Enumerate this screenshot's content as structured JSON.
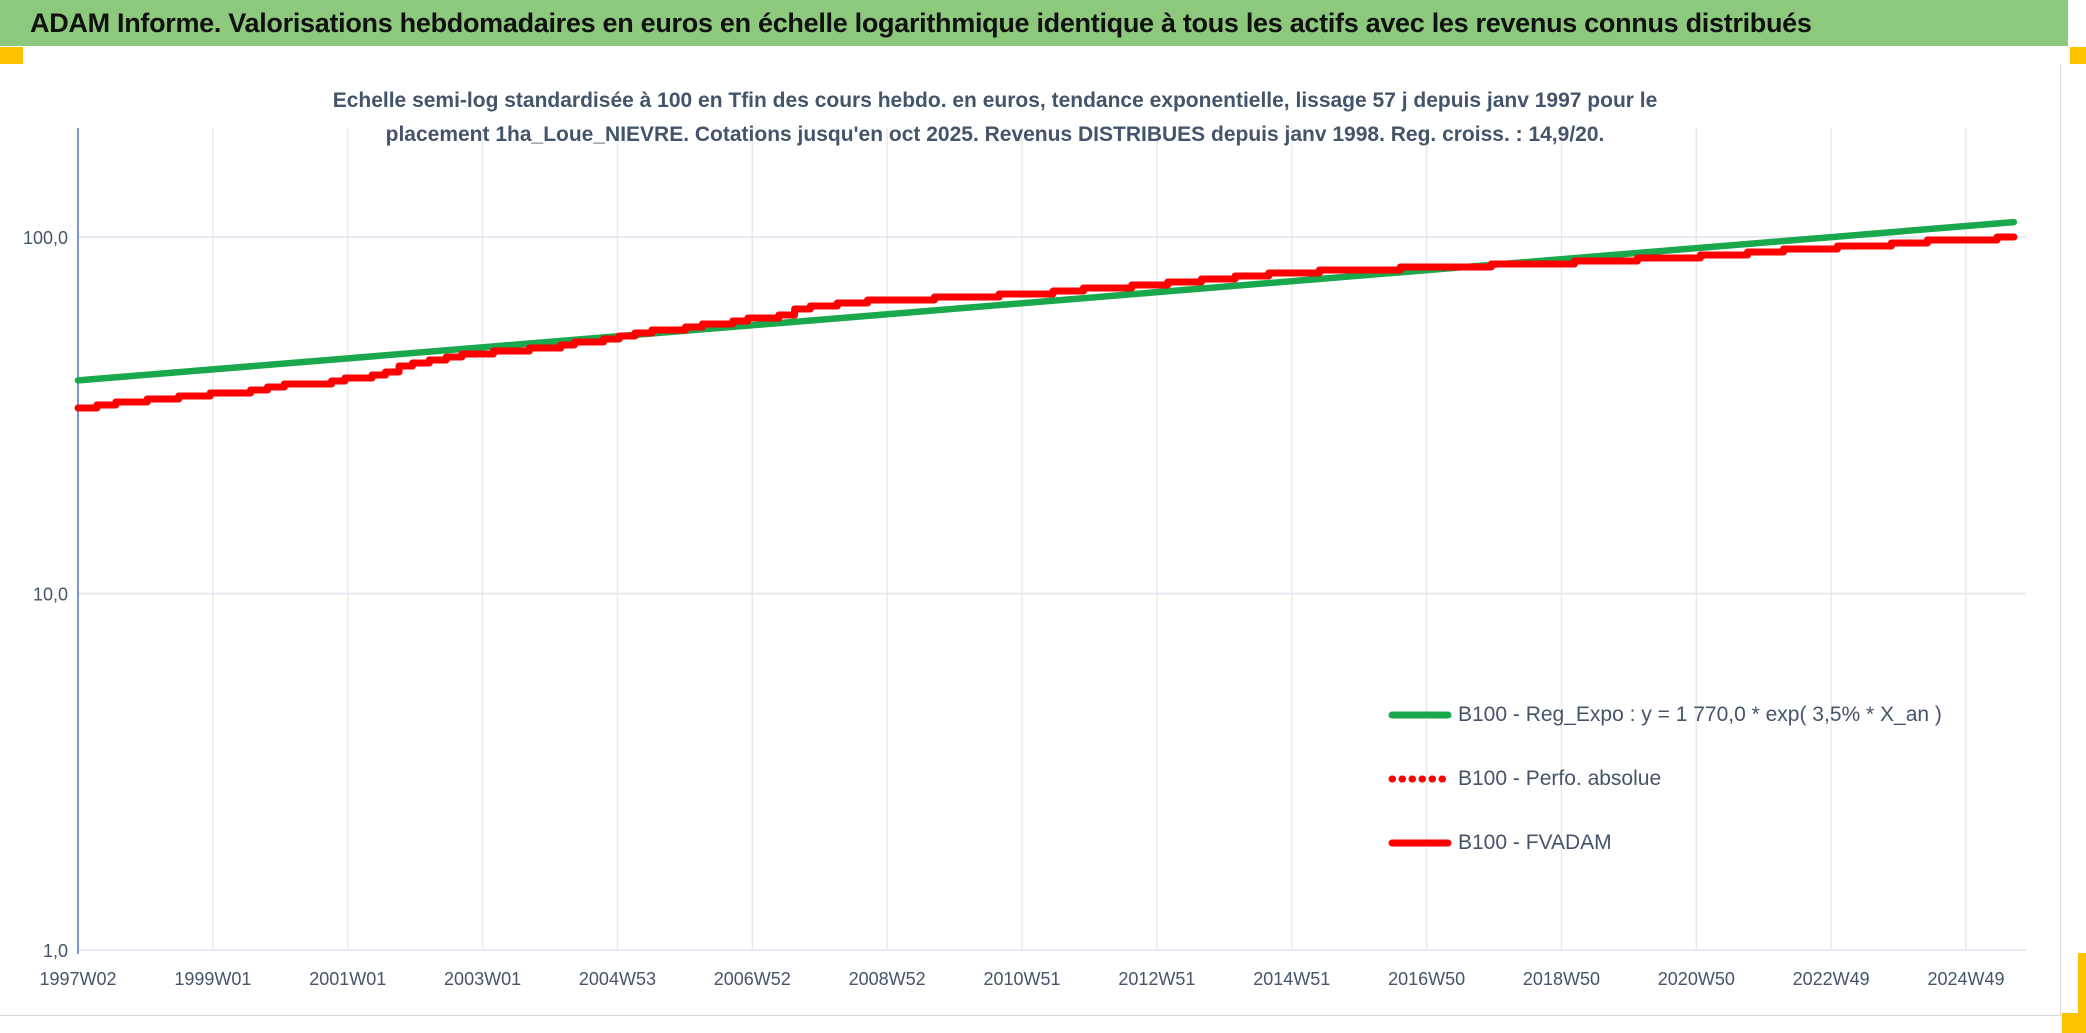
{
  "header": {
    "title": "ADAM Informe. Valorisations hebdomadaires en euros en échelle logarithmique identique à tous les actifs avec les revenus connus distribués"
  },
  "chart": {
    "subtitle_lines": [
      "Echelle semi-log standardisée à 100 en Tfin des cours hebdo. en euros, tendance exponentielle, lissage 57 j depuis janv 1997 pour le",
      "placement 1ha_Loue_NIEVRE. Cotations jusqu'en oct 2025. Revenus DISTRIBUES depuis janv 1998. Reg. croiss. : 14,9/20."
    ]
  },
  "colors": {
    "header_green": "#8DC97D",
    "accent_amber": "#FFC000",
    "text_blue_gray": "#44546A",
    "axis_blue": "#4472C4",
    "grid_vertical": "#E9E9E9",
    "grid_horizontal": "#DEE4EE",
    "line_green": "#1AA84C",
    "line_red": "#FF0000"
  },
  "chart_data": {
    "type": "line",
    "title": "Echelle semi-log standardisée à 100 en Tfin des cours hebdo. en euros, tendance exponentielle, lissage 57 j depuis janv 1997 pour le placement 1ha_Loue_NIEVRE. Cotations jusqu'en oct 2025. Revenus DISTRIBUES depuis janv 1998. Reg. croiss. : 14,9/20.",
    "y_scale": "log",
    "ylim": [
      1,
      200
    ],
    "grid": true,
    "legend_position": "lower right",
    "x_unit": "year",
    "x_tick_labels": [
      "1997W02",
      "1999W01",
      "2001W01",
      "2003W01",
      "2004W53",
      "2006W52",
      "2008W52",
      "2010W51",
      "2012W51",
      "2014W51",
      "2016W50",
      "2018W50",
      "2020W50",
      "2022W49",
      "2024W49"
    ],
    "y_tick_labels": [
      {
        "text": "100,0",
        "value": 100
      },
      {
        "text": "10,0",
        "value": 10
      },
      {
        "text": "1,0",
        "value": 1
      }
    ],
    "series": [
      {
        "name": "B100 - Reg_Expo : y = 1 770,0 * exp( 3,5% *  X_an )",
        "color": "#1AA84C",
        "style": "solid",
        "points": [
          [
            1997.04,
            39.6
          ],
          [
            2001.0,
            45.6
          ],
          [
            2005.0,
            52.6
          ],
          [
            2009.0,
            60.6
          ],
          [
            2013.0,
            69.9
          ],
          [
            2017.0,
            80.6
          ],
          [
            2021.0,
            92.9
          ],
          [
            2025.75,
            110.1
          ]
        ]
      },
      {
        "name": "B100 - Perfo. absolue",
        "color": "#FF0000",
        "style": "dotted",
        "coincides_with": "B100 - FVADAM",
        "points": []
      },
      {
        "name": "B100 - FVADAM",
        "color": "#FF0000",
        "style": "solid",
        "points": [
          [
            1997.04,
            33.4
          ],
          [
            1997.6,
            34.2
          ],
          [
            1998.3,
            35.3
          ],
          [
            1999.0,
            36.3
          ],
          [
            1999.6,
            37.0
          ],
          [
            2000.1,
            38.4
          ],
          [
            2000.8,
            39.3
          ],
          [
            2001.4,
            41.2
          ],
          [
            2002.0,
            44.2
          ],
          [
            2002.5,
            46.5
          ],
          [
            2003.2,
            47.8
          ],
          [
            2004.0,
            49.0
          ],
          [
            2004.6,
            51.2
          ],
          [
            2005.3,
            54.0
          ],
          [
            2006.3,
            56.6
          ],
          [
            2007.2,
            59.5
          ],
          [
            2007.9,
            64.0
          ],
          [
            2008.5,
            65.7
          ],
          [
            2009.5,
            67.0
          ],
          [
            2010.7,
            68.6
          ],
          [
            2011.5,
            70.5
          ],
          [
            2012.4,
            72.0
          ],
          [
            2013.2,
            74.7
          ],
          [
            2014.2,
            77.5
          ],
          [
            2015.2,
            79.8
          ],
          [
            2016.2,
            81.0
          ],
          [
            2017.1,
            82.3
          ],
          [
            2018.0,
            83.2
          ],
          [
            2019.0,
            84.5
          ],
          [
            2020.4,
            86.9
          ],
          [
            2021.1,
            88.5
          ],
          [
            2021.8,
            90.2
          ],
          [
            2022.6,
            92.5
          ],
          [
            2023.4,
            94.5
          ],
          [
            2024.2,
            96.5
          ],
          [
            2025.0,
            98.5
          ],
          [
            2025.75,
            100.0
          ]
        ]
      }
    ]
  }
}
